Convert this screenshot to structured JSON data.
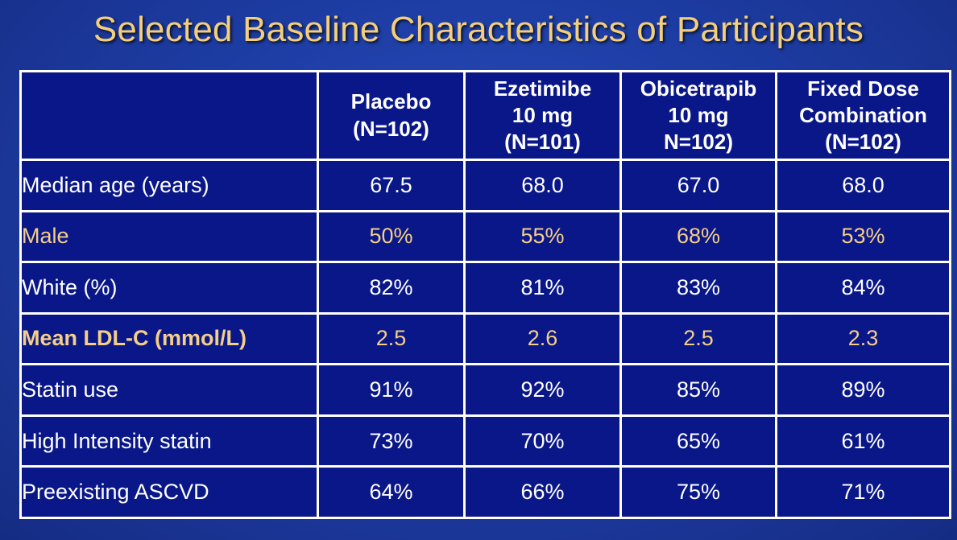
{
  "title": "Selected Baseline Characteristics of Participants",
  "colors": {
    "background": "#1e3ea6",
    "table_fill": "#0a1788",
    "title_text": "#f3ce7c",
    "highlight_text": "#f5cf86",
    "body_text": "#ffffff",
    "grid_lines": "#ffffff"
  },
  "table": {
    "headers": [
      {
        "line1": "Placebo",
        "line2": "(N=102)",
        "line3": ""
      },
      {
        "line1": "Ezetimibe",
        "line2": "10 mg",
        "line3": "(N=101)"
      },
      {
        "line1": "Obicetrapib",
        "line2": "10 mg",
        "line3": "N=102)"
      },
      {
        "line1": "Fixed Dose",
        "line2": "Combination",
        "line3": "(N=102)"
      }
    ],
    "rows": [
      {
        "label": "Median age (years)",
        "values": [
          "67.5",
          "68.0",
          "67.0",
          "68.0"
        ]
      },
      {
        "label": "Male",
        "values": [
          "50%",
          "55%",
          "68%",
          "53%"
        ]
      },
      {
        "label": "White (%)",
        "values": [
          "82%",
          "81%",
          "83%",
          "84%"
        ]
      },
      {
        "label": "Mean LDL-C (mmol/L)",
        "values": [
          "2.5",
          "2.6",
          "2.5",
          "2.3"
        ]
      },
      {
        "label": "Statin use",
        "values": [
          "91%",
          "92%",
          "85%",
          "89%"
        ]
      },
      {
        "label": "High Intensity statin",
        "values": [
          "73%",
          "70%",
          "65%",
          "61%"
        ]
      },
      {
        "label": "Preexisting ASCVD",
        "values": [
          "64%",
          "66%",
          "75%",
          "71%"
        ]
      }
    ]
  }
}
